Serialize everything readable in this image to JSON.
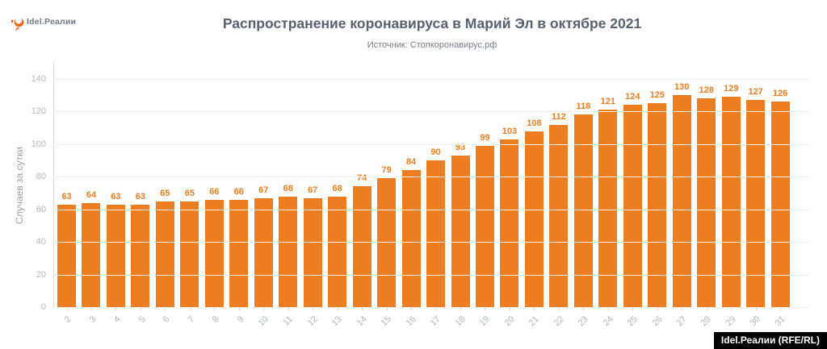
{
  "logo": {
    "brand": "Idel.Реалии",
    "icon": "torch-icon",
    "icon_color": "#f0681e"
  },
  "header": {
    "title": "Распространение коронавируса в Марий Эл в октябре 2021",
    "subtitle": "Источник: Стопкоронавирус.рф"
  },
  "watermark": {
    "label": "Idel.Реалии (RFE/RL)"
  },
  "chart_data": {
    "type": "bar",
    "title": "Распространение коронавируса в Марий Эл в октябре 2021",
    "subtitle": "Источник: Стопкоронавирус.рф",
    "categories": [
      2,
      3,
      4,
      5,
      6,
      7,
      8,
      9,
      10,
      11,
      12,
      13,
      14,
      15,
      16,
      17,
      18,
      19,
      20,
      21,
      22,
      23,
      24,
      25,
      26,
      27,
      28,
      29,
      30,
      31
    ],
    "values": [
      63,
      64,
      63,
      63,
      65,
      65,
      66,
      66,
      67,
      68,
      67,
      68,
      74,
      79,
      84,
      90,
      93,
      99,
      103,
      108,
      112,
      118,
      121,
      124,
      125,
      130,
      128,
      129,
      127,
      126
    ],
    "xlabel": "",
    "ylabel": "Случаев за сутки",
    "yticks": [
      0,
      20,
      40,
      60,
      80,
      100,
      120,
      140
    ],
    "ylim": [
      0,
      140
    ],
    "grid": true,
    "legend": false,
    "bar_color": "#ec7d21",
    "value_label_color": "#ec7d21"
  }
}
